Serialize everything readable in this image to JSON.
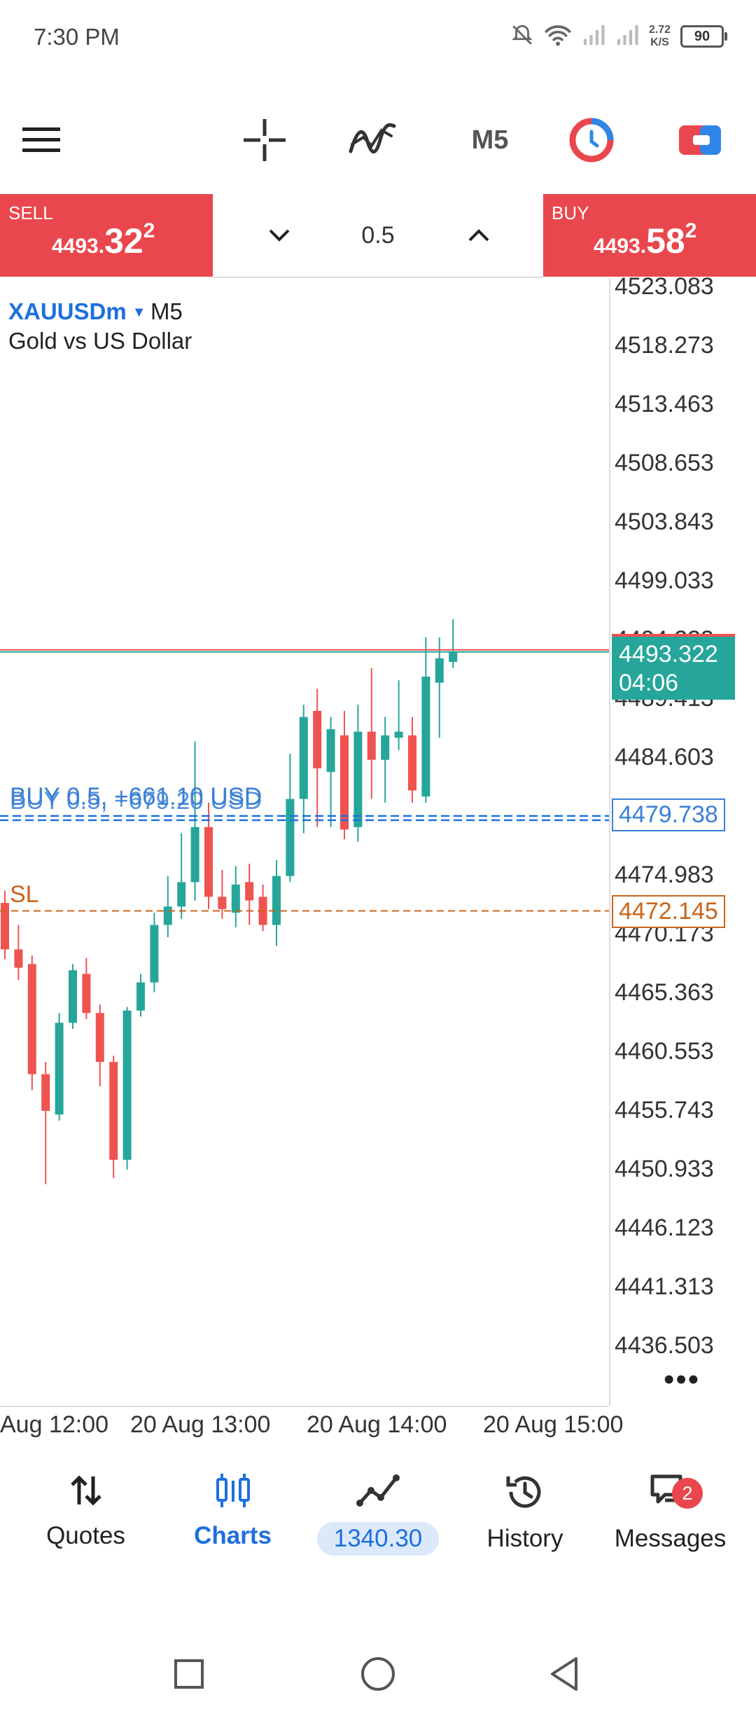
{
  "status_bar": {
    "time": "7:30 PM",
    "net_speed_value": "2.72",
    "net_speed_unit": "K/S",
    "battery": "90",
    "icons": [
      "mute-notifications-icon",
      "wifi-icon",
      "signal-icon",
      "signal-icon",
      "battery-icon"
    ]
  },
  "toolbar": {
    "items": [
      "menu-icon",
      "crosshair-icon",
      "indicators-icon",
      "timeframe",
      "trade-history-icon",
      "one-click-trading-icon"
    ],
    "timeframe": "M5"
  },
  "trade_panel": {
    "sell_label": "SELL",
    "sell_price_small": "4493.",
    "sell_price_big": "32",
    "sell_price_sup": "2",
    "lot": "0.5",
    "buy_label": "BUY",
    "buy_price_small": "4493.",
    "buy_price_big": "58",
    "buy_price_sup": "2"
  },
  "chart_header": {
    "symbol": "XAUUSDm",
    "timeframe": "M5",
    "description": "Gold vs US Dollar"
  },
  "chart_data": {
    "type": "candlestick",
    "price_axis": [
      "4523.083",
      "4518.273",
      "4513.463",
      "4508.653",
      "4503.843",
      "4499.033",
      "4494.223",
      "4489.413",
      "4484.603",
      "4474.983",
      "4470.173",
      "4465.363",
      "4460.553",
      "4455.743",
      "4450.933",
      "4446.123",
      "4441.313",
      "4436.503"
    ],
    "ylim": [
      4433.5,
      4525.5
    ],
    "time_axis": [
      "Aug 12:00",
      "20 Aug 13:00",
      "20 Aug 14:00",
      "20 Aug 15:00"
    ],
    "current_price": "4493.322",
    "countdown": "04:06",
    "position_line": {
      "price": "4479.738",
      "label_1": "BUY 0.5,  +661.10 USD",
      "label_2": "BUY 0.5,  +679.20 USD"
    },
    "sl_line": {
      "label": "SL",
      "price": "4472.145"
    },
    "candles": [
      {
        "o": 4472.8,
        "h": 4473.8,
        "l": 4468.2,
        "c": 4469.0
      },
      {
        "o": 4469.0,
        "h": 4471.0,
        "l": 4466.5,
        "c": 4467.5
      },
      {
        "o": 4467.8,
        "h": 4468.5,
        "l": 4457.5,
        "c": 4458.8
      },
      {
        "o": 4458.8,
        "h": 4459.8,
        "l": 4449.8,
        "c": 4455.8
      },
      {
        "o": 4455.5,
        "h": 4463.8,
        "l": 4455.0,
        "c": 4463.0
      },
      {
        "o": 4463.0,
        "h": 4467.8,
        "l": 4462.5,
        "c": 4467.3
      },
      {
        "o": 4467.0,
        "h": 4468.3,
        "l": 4463.3,
        "c": 4463.8
      },
      {
        "o": 4463.8,
        "h": 4464.5,
        "l": 4457.8,
        "c": 4459.8
      },
      {
        "o": 4459.8,
        "h": 4460.3,
        "l": 4450.3,
        "c": 4451.8
      },
      {
        "o": 4451.8,
        "h": 4464.3,
        "l": 4451.0,
        "c": 4464.0
      },
      {
        "o": 4464.0,
        "h": 4467.0,
        "l": 4463.5,
        "c": 4466.3
      },
      {
        "o": 4466.3,
        "h": 4472.0,
        "l": 4465.5,
        "c": 4471.0
      },
      {
        "o": 4471.0,
        "h": 4475.0,
        "l": 4470.0,
        "c": 4472.5
      },
      {
        "o": 4472.5,
        "h": 4478.5,
        "l": 4471.5,
        "c": 4474.5
      },
      {
        "o": 4474.5,
        "h": 4486.0,
        "l": 4473.0,
        "c": 4479.0
      },
      {
        "o": 4479.0,
        "h": 4481.0,
        "l": 4472.3,
        "c": 4473.3
      },
      {
        "o": 4473.3,
        "h": 4475.5,
        "l": 4471.5,
        "c": 4472.3
      },
      {
        "o": 4472.0,
        "h": 4475.8,
        "l": 4470.8,
        "c": 4474.3
      },
      {
        "o": 4474.5,
        "h": 4476.0,
        "l": 4471.0,
        "c": 4473.0
      },
      {
        "o": 4473.3,
        "h": 4474.3,
        "l": 4470.5,
        "c": 4471.0
      },
      {
        "o": 4471.0,
        "h": 4476.3,
        "l": 4469.3,
        "c": 4475.0
      },
      {
        "o": 4475.0,
        "h": 4485.0,
        "l": 4474.5,
        "c": 4481.3
      },
      {
        "o": 4481.3,
        "h": 4489.0,
        "l": 4478.5,
        "c": 4488.0
      },
      {
        "o": 4488.5,
        "h": 4490.3,
        "l": 4479.0,
        "c": 4483.8
      },
      {
        "o": 4483.5,
        "h": 4488.0,
        "l": 4479.0,
        "c": 4487.0
      },
      {
        "o": 4486.5,
        "h": 4488.5,
        "l": 4478.0,
        "c": 4478.8
      },
      {
        "o": 4479.0,
        "h": 4489.0,
        "l": 4477.8,
        "c": 4486.8
      },
      {
        "o": 4486.8,
        "h": 4492.0,
        "l": 4481.3,
        "c": 4484.5
      },
      {
        "o": 4484.5,
        "h": 4488.0,
        "l": 4481.0,
        "c": 4486.5
      },
      {
        "o": 4486.3,
        "h": 4491.0,
        "l": 4485.3,
        "c": 4486.8
      },
      {
        "o": 4486.5,
        "h": 4488.0,
        "l": 4481.0,
        "c": 4482.0
      },
      {
        "o": 4481.5,
        "h": 4494.5,
        "l": 4481.0,
        "c": 4491.3
      },
      {
        "o": 4490.8,
        "h": 4494.5,
        "l": 4486.3,
        "c": 4492.8
      },
      {
        "o": 4492.5,
        "h": 4496.0,
        "l": 4492.0,
        "c": 4493.3
      }
    ]
  },
  "bottom_nav": {
    "quotes": "Quotes",
    "charts": "Charts",
    "balance": "1340.30",
    "history": "History",
    "messages": "Messages",
    "messages_badge": "2"
  },
  "colors": {
    "bull": "#26a69a",
    "bear": "#ef5350",
    "accent": "#1e6fde",
    "sell_buy_bg": "#e9474d",
    "sl": "#c8651b"
  }
}
